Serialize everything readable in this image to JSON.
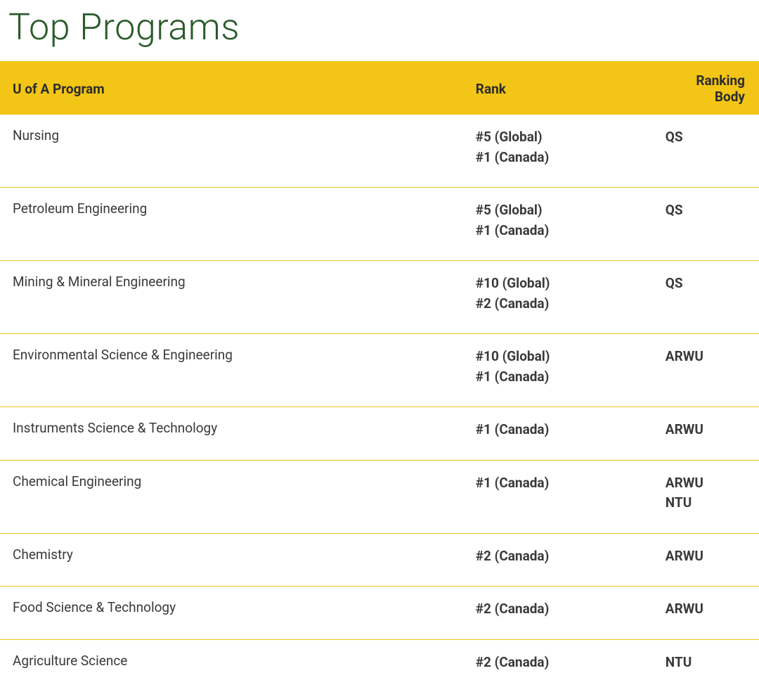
{
  "title": "Top Programs",
  "colors": {
    "title_color": "#2a5a2a",
    "header_bg": "#f3c516",
    "header_text": "#2d2d2d",
    "row_border": "#f3c516",
    "cell_text": "#3a3a3a",
    "background": "#ffffff"
  },
  "table": {
    "columns": [
      "U of A Program",
      "Rank",
      "Ranking Body"
    ],
    "rows": [
      {
        "program": "Nursing",
        "rank": [
          "#5 (Global)",
          "#1 (Canada)"
        ],
        "body": [
          "QS"
        ]
      },
      {
        "program": "Petroleum Engineering",
        "rank": [
          "#5 (Global)",
          "#1 (Canada)"
        ],
        "body": [
          "QS"
        ]
      },
      {
        "program": "Mining & Mineral Engineering",
        "rank": [
          "#10 (Global)",
          "#2 (Canada)"
        ],
        "body": [
          "QS"
        ]
      },
      {
        "program": "Environmental Science & Engineering",
        "rank": [
          "#10 (Global)",
          "#1 (Canada)"
        ],
        "body": [
          "ARWU"
        ]
      },
      {
        "program": "Instruments Science & Technology",
        "rank": [
          "#1 (Canada)"
        ],
        "body": [
          "ARWU"
        ]
      },
      {
        "program": "Chemical Engineering",
        "rank": [
          "#1 (Canada)"
        ],
        "body": [
          "ARWU",
          "NTU"
        ]
      },
      {
        "program": "Chemistry",
        "rank": [
          "#2 (Canada)"
        ],
        "body": [
          "ARWU"
        ]
      },
      {
        "program": "Food Science & Technology",
        "rank": [
          "#2 (Canada)"
        ],
        "body": [
          "ARWU"
        ]
      },
      {
        "program": "Agriculture Science",
        "rank": [
          "#2 (Canada)"
        ],
        "body": [
          "NTU"
        ]
      }
    ]
  }
}
